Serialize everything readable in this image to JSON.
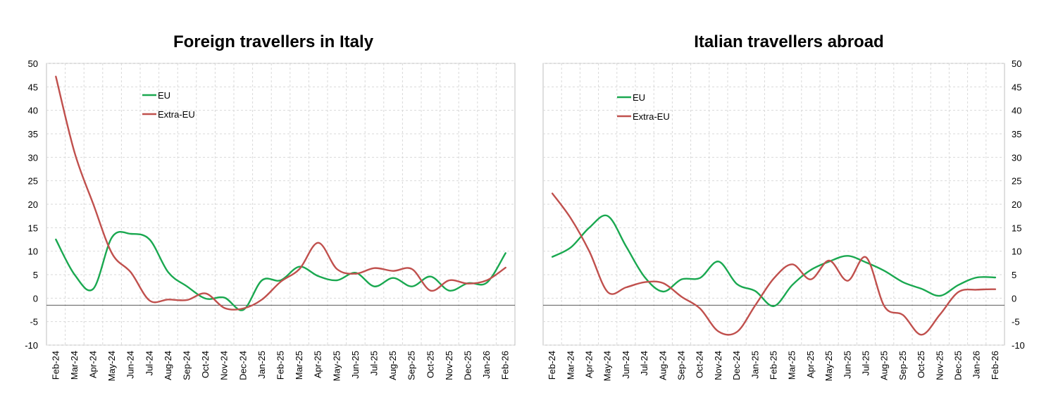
{
  "charts": [
    {
      "type": "line",
      "title": "Foreign travellers in Italy",
      "ylim": [
        -10,
        50
      ],
      "yticks": [
        -10,
        -5,
        0,
        5,
        10,
        15,
        20,
        25,
        30,
        35,
        40,
        45,
        50
      ],
      "y_axis_side": "left",
      "grid": true,
      "legend": "upper-left-inside",
      "categories": [
        "Feb-24",
        "Mar-24",
        "Apr-24",
        "May-24",
        "Jun-24",
        "Jul-24",
        "Aug-24",
        "Sep-24",
        "Oct-24",
        "Nov-24",
        "Dec-24",
        "Jan-25",
        "Feb-25",
        "Mar-25",
        "Apr-25",
        "May-25",
        "Jun-25",
        "Jul-25",
        "Aug-25",
        "Sep-25",
        "Oct-25",
        "Nov-25",
        "Dec-25",
        "Jan-26",
        "Feb-26"
      ],
      "series": [
        {
          "name": "EU",
          "color": "#1aa850",
          "values": [
            12.5,
            5.0,
            2.0,
            13.0,
            13.7,
            12.5,
            5.5,
            2.5,
            -0.1,
            0.1,
            -2.5,
            3.8,
            3.8,
            6.7,
            4.7,
            3.8,
            5.4,
            2.5,
            4.3,
            2.5,
            4.6,
            1.6,
            3.2,
            3.3,
            9.6
          ]
        },
        {
          "name": "Extra-EU",
          "color": "#c0504d",
          "values": [
            47.2,
            31.0,
            20.0,
            9.5,
            5.5,
            -0.5,
            -0.3,
            -0.4,
            1.0,
            -2.1,
            -2.2,
            -0.3,
            3.5,
            6.2,
            11.8,
            6.2,
            5.2,
            6.4,
            5.8,
            6.2,
            1.6,
            3.8,
            3.1,
            3.8,
            6.5
          ]
        }
      ]
    },
    {
      "type": "line",
      "title": "Italian travellers abroad",
      "ylim": [
        -10,
        50
      ],
      "yticks": [
        -10,
        -5,
        0,
        5,
        10,
        15,
        20,
        25,
        30,
        35,
        40,
        45,
        50
      ],
      "y_axis_side": "right",
      "grid": true,
      "legend": "upper-left-inside",
      "categories": [
        "Feb-24",
        "Mar-24",
        "Apr-24",
        "May-24",
        "Jun-24",
        "Jul-24",
        "Aug-24",
        "Sep-24",
        "Oct-24",
        "Nov-24",
        "Dec-24",
        "Jan-25",
        "Feb-25",
        "Mar-25",
        "Apr-25",
        "May-25",
        "Jun-25",
        "Jul-25",
        "Aug-25",
        "Sep-25",
        "Oct-25",
        "Nov-25",
        "Dec-25",
        "Jan-26",
        "Feb-26"
      ],
      "series": [
        {
          "name": "EU",
          "color": "#1aa850",
          "values": [
            8.8,
            10.8,
            15.0,
            17.5,
            11.0,
            4.5,
            1.4,
            4.0,
            4.3,
            7.8,
            3.0,
            1.5,
            -1.7,
            2.8,
            6.0,
            7.8,
            9.0,
            7.6,
            5.8,
            3.4,
            2.0,
            0.5,
            2.8,
            4.4,
            4.4
          ]
        },
        {
          "name": "Extra-EU",
          "color": "#c0504d",
          "values": [
            22.3,
            17.0,
            10.0,
            1.3,
            2.3,
            3.4,
            3.2,
            0.3,
            -2.2,
            -7.1,
            -7.2,
            -1.5,
            4.2,
            7.2,
            4.0,
            8.0,
            3.7,
            8.7,
            -1.8,
            -3.6,
            -7.8,
            -3.5,
            1.3,
            1.8,
            1.9
          ]
        }
      ]
    }
  ]
}
